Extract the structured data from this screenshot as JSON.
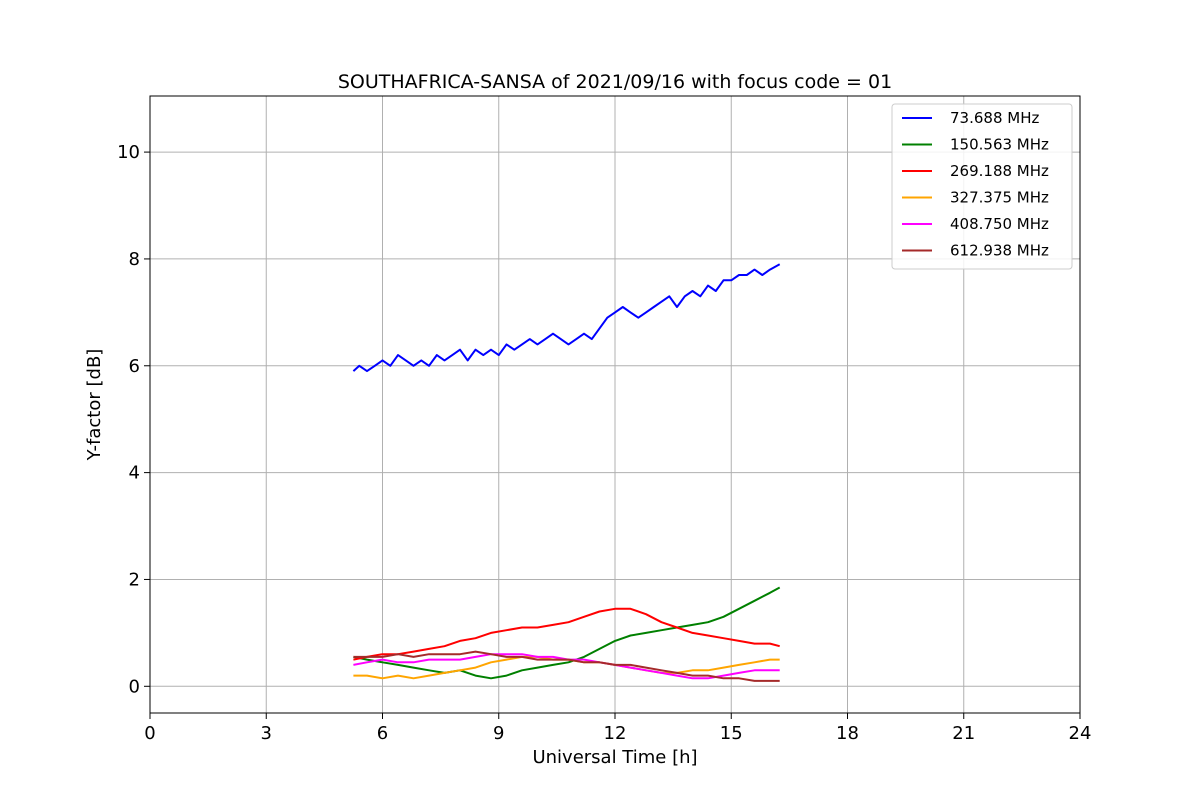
{
  "chart_data": {
    "type": "line",
    "title": "SOUTHAFRICA-SANSA of 2021/09/16 with focus code = 01",
    "xlabel": "Universal Time [h]",
    "ylabel": "Y-factor [dB]",
    "xlim": [
      0,
      24
    ],
    "ylim": [
      -0.5,
      11.05
    ],
    "xticks": [
      0,
      3,
      6,
      9,
      12,
      15,
      18,
      21,
      24
    ],
    "yticks": [
      0,
      2,
      4,
      6,
      8,
      10
    ],
    "grid": true,
    "legend_position": "top-right",
    "series": [
      {
        "name": " 73.688 MHz",
        "color": "#0000ff",
        "x": [
          5.25,
          5.4,
          5.6,
          5.8,
          6.0,
          6.2,
          6.4,
          6.6,
          6.8,
          7.0,
          7.2,
          7.4,
          7.6,
          7.8,
          8.0,
          8.2,
          8.4,
          8.6,
          8.8,
          9.0,
          9.2,
          9.4,
          9.6,
          9.8,
          10.0,
          10.2,
          10.4,
          10.6,
          10.8,
          11.0,
          11.2,
          11.4,
          11.6,
          11.8,
          12.0,
          12.2,
          12.4,
          12.6,
          12.8,
          13.0,
          13.2,
          13.4,
          13.6,
          13.8,
          14.0,
          14.2,
          14.4,
          14.6,
          14.8,
          15.0,
          15.2,
          15.4,
          15.6,
          15.8,
          16.0,
          16.25
        ],
        "y": [
          5.9,
          6.0,
          5.9,
          6.0,
          6.1,
          6.0,
          6.2,
          6.1,
          6.0,
          6.1,
          6.0,
          6.2,
          6.1,
          6.2,
          6.3,
          6.1,
          6.3,
          6.2,
          6.3,
          6.2,
          6.4,
          6.3,
          6.4,
          6.5,
          6.4,
          6.5,
          6.6,
          6.5,
          6.4,
          6.5,
          6.6,
          6.5,
          6.7,
          6.9,
          7.0,
          7.1,
          7.0,
          6.9,
          7.0,
          7.1,
          7.2,
          7.3,
          7.1,
          7.3,
          7.4,
          7.3,
          7.5,
          7.4,
          7.6,
          7.6,
          7.7,
          7.7,
          7.8,
          7.7,
          7.8,
          7.9
        ]
      },
      {
        "name": "150.563 MHz",
        "color": "#008000",
        "x": [
          5.25,
          5.6,
          6.0,
          6.4,
          6.8,
          7.2,
          7.6,
          8.0,
          8.4,
          8.8,
          9.2,
          9.6,
          10.0,
          10.4,
          10.8,
          11.2,
          11.6,
          12.0,
          12.4,
          12.8,
          13.2,
          13.6,
          14.0,
          14.4,
          14.8,
          15.2,
          15.6,
          16.0,
          16.25
        ],
        "y": [
          0.55,
          0.5,
          0.45,
          0.4,
          0.35,
          0.3,
          0.25,
          0.3,
          0.2,
          0.15,
          0.2,
          0.3,
          0.35,
          0.4,
          0.45,
          0.55,
          0.7,
          0.85,
          0.95,
          1.0,
          1.05,
          1.1,
          1.15,
          1.2,
          1.3,
          1.45,
          1.6,
          1.75,
          1.85
        ]
      },
      {
        "name": "269.188 MHz",
        "color": "#ff0000",
        "x": [
          5.25,
          5.6,
          6.0,
          6.4,
          6.8,
          7.2,
          7.6,
          8.0,
          8.4,
          8.8,
          9.2,
          9.6,
          10.0,
          10.4,
          10.8,
          11.2,
          11.6,
          12.0,
          12.4,
          12.8,
          13.2,
          13.6,
          14.0,
          14.4,
          14.8,
          15.2,
          15.6,
          16.0,
          16.25
        ],
        "y": [
          0.5,
          0.55,
          0.6,
          0.6,
          0.65,
          0.7,
          0.75,
          0.85,
          0.9,
          1.0,
          1.05,
          1.1,
          1.1,
          1.15,
          1.2,
          1.3,
          1.4,
          1.45,
          1.45,
          1.35,
          1.2,
          1.1,
          1.0,
          0.95,
          0.9,
          0.85,
          0.8,
          0.8,
          0.75
        ]
      },
      {
        "name": "327.375 MHz",
        "color": "#ffa500",
        "x": [
          5.25,
          5.6,
          6.0,
          6.4,
          6.8,
          7.2,
          7.6,
          8.0,
          8.4,
          8.8,
          9.2,
          9.6,
          10.0,
          10.4,
          10.8,
          11.2,
          11.6,
          12.0,
          12.4,
          12.8,
          13.2,
          13.6,
          14.0,
          14.4,
          14.8,
          15.2,
          15.6,
          16.0,
          16.25
        ],
        "y": [
          0.2,
          0.2,
          0.15,
          0.2,
          0.15,
          0.2,
          0.25,
          0.3,
          0.35,
          0.45,
          0.5,
          0.55,
          0.55,
          0.5,
          0.5,
          0.45,
          0.45,
          0.4,
          0.35,
          0.3,
          0.25,
          0.25,
          0.3,
          0.3,
          0.35,
          0.4,
          0.45,
          0.5,
          0.5
        ]
      },
      {
        "name": "408.750 MHz",
        "color": "#ff00ff",
        "x": [
          5.25,
          5.6,
          6.0,
          6.4,
          6.8,
          7.2,
          7.6,
          8.0,
          8.4,
          8.8,
          9.2,
          9.6,
          10.0,
          10.4,
          10.8,
          11.2,
          11.6,
          12.0,
          12.4,
          12.8,
          13.2,
          13.6,
          14.0,
          14.4,
          14.8,
          15.2,
          15.6,
          16.0,
          16.25
        ],
        "y": [
          0.4,
          0.45,
          0.5,
          0.45,
          0.45,
          0.5,
          0.5,
          0.5,
          0.55,
          0.6,
          0.6,
          0.6,
          0.55,
          0.55,
          0.5,
          0.5,
          0.45,
          0.4,
          0.35,
          0.3,
          0.25,
          0.2,
          0.15,
          0.15,
          0.2,
          0.25,
          0.3,
          0.3,
          0.3
        ]
      },
      {
        "name": "612.938 MHz",
        "color": "#a52a2a",
        "x": [
          5.25,
          5.6,
          6.0,
          6.4,
          6.8,
          7.2,
          7.6,
          8.0,
          8.4,
          8.8,
          9.2,
          9.6,
          10.0,
          10.4,
          10.8,
          11.2,
          11.6,
          12.0,
          12.4,
          12.8,
          13.2,
          13.6,
          14.0,
          14.4,
          14.8,
          15.2,
          15.6,
          16.0,
          16.25
        ],
        "y": [
          0.55,
          0.55,
          0.55,
          0.6,
          0.55,
          0.6,
          0.6,
          0.6,
          0.65,
          0.6,
          0.55,
          0.55,
          0.5,
          0.5,
          0.5,
          0.45,
          0.45,
          0.4,
          0.4,
          0.35,
          0.3,
          0.25,
          0.2,
          0.2,
          0.15,
          0.15,
          0.1,
          0.1,
          0.1
        ]
      }
    ]
  }
}
